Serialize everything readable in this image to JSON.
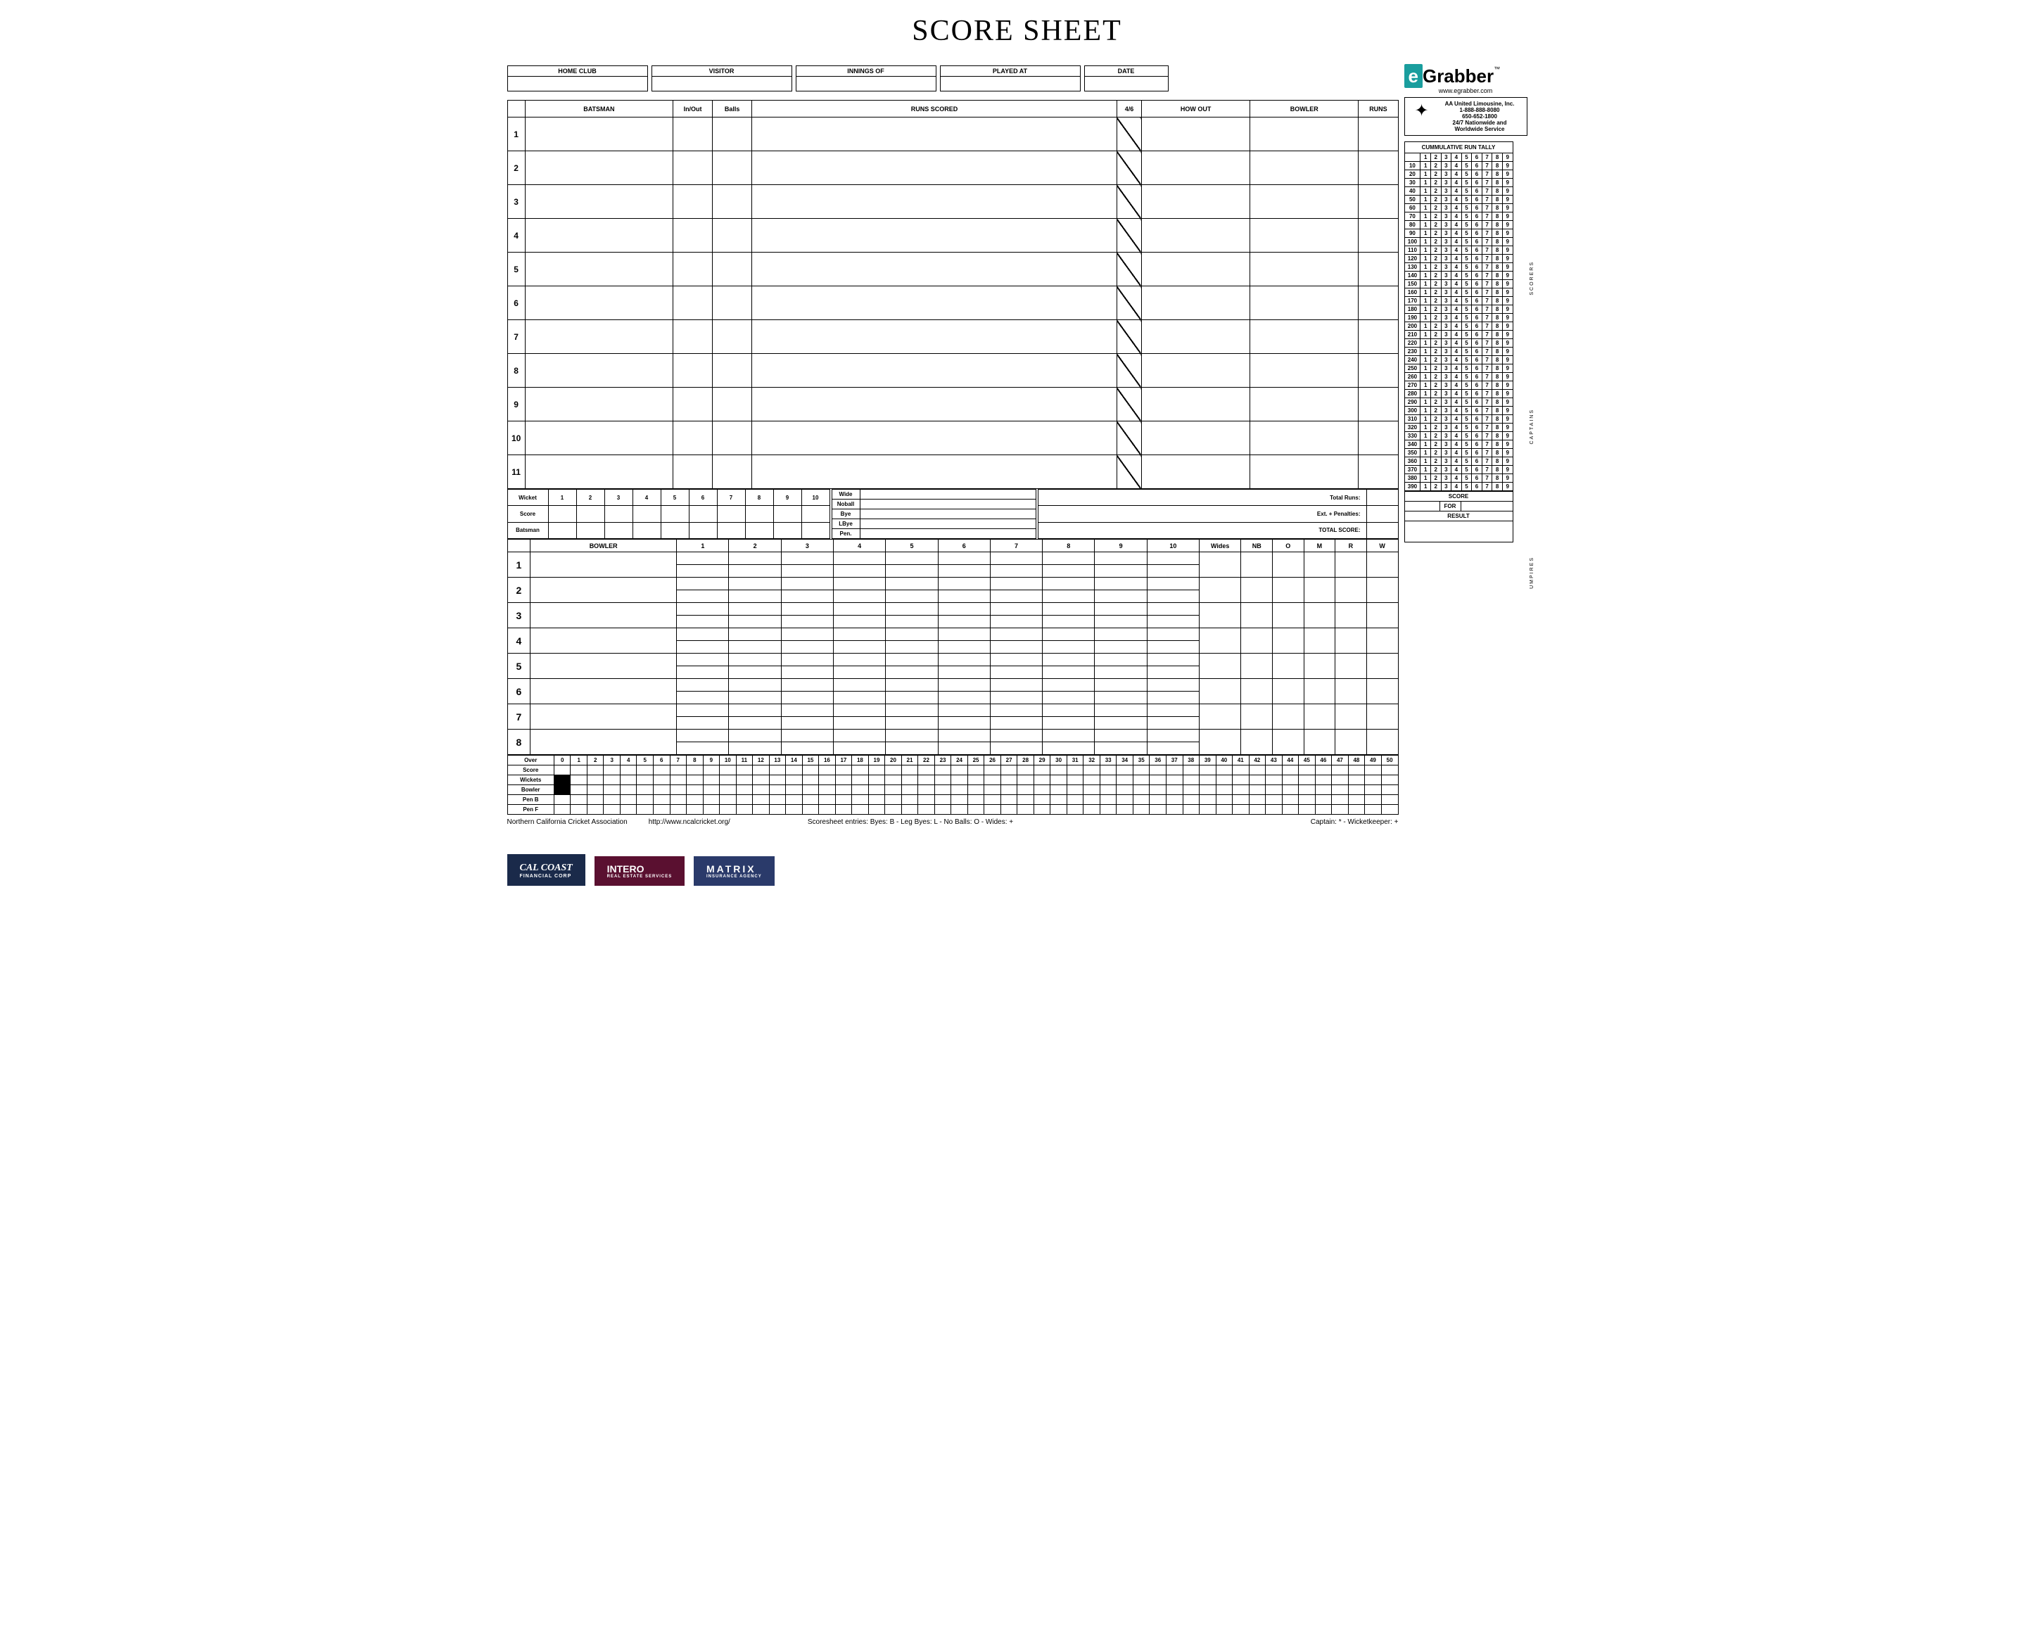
{
  "title": "SCORE SHEET",
  "headers": {
    "home": "HOME CLUB",
    "visitor": "VISITOR",
    "innings": "INNINGS OF",
    "played": "PLAYED AT",
    "date": "DATE"
  },
  "batting": {
    "cols": {
      "batsman": "BATSMAN",
      "inout": "In/Out",
      "balls": "Balls",
      "runs": "RUNS SCORED",
      "fs": "4/6",
      "how": "HOW OUT",
      "bowler": "BOWLER",
      "r": "RUNS"
    },
    "nums": [
      "1",
      "2",
      "3",
      "4",
      "5",
      "6",
      "7",
      "8",
      "9",
      "10",
      "11"
    ]
  },
  "wicket": {
    "label": "Wicket",
    "score": "Score",
    "batsman": "Batsman",
    "nums": [
      "1",
      "2",
      "3",
      "4",
      "5",
      "6",
      "7",
      "8",
      "9",
      "10"
    ]
  },
  "extras": {
    "wide": "Wide",
    "noball": "Noball",
    "bye": "Bye",
    "lbye": "LBye",
    "pen": "Pen."
  },
  "totals": {
    "tr": "Total Runs:",
    "ep": "Ext. + Penalties:",
    "ts": "TOTAL SCORE:"
  },
  "bowling": {
    "cols": {
      "bowler": "BOWLER",
      "wides": "Wides",
      "nb": "NB",
      "o": "O",
      "m": "M",
      "r": "R",
      "w": "W"
    },
    "overs": [
      "1",
      "2",
      "3",
      "4",
      "5",
      "6",
      "7",
      "8",
      "9",
      "10"
    ],
    "nums": [
      "1",
      "2",
      "3",
      "4",
      "5",
      "6",
      "7",
      "8"
    ]
  },
  "overTrack": {
    "rows": [
      "Over",
      "Score",
      "Wickets",
      "Bowler",
      "Pen B",
      "Pen F"
    ],
    "cols": [
      "0",
      "1",
      "2",
      "3",
      "4",
      "5",
      "6",
      "7",
      "8",
      "9",
      "10",
      "11",
      "12",
      "13",
      "14",
      "15",
      "16",
      "17",
      "18",
      "19",
      "20",
      "21",
      "22",
      "23",
      "24",
      "25",
      "26",
      "27",
      "28",
      "29",
      "30",
      "31",
      "32",
      "33",
      "34",
      "35",
      "36",
      "37",
      "38",
      "39",
      "40",
      "41",
      "42",
      "43",
      "44",
      "45",
      "46",
      "47",
      "48",
      "49",
      "50"
    ]
  },
  "tally": {
    "title": "CUMMULATIVE RUN TALLY",
    "units": [
      "1",
      "2",
      "3",
      "4",
      "5",
      "6",
      "7",
      "8",
      "9"
    ],
    "tens": [
      "10",
      "20",
      "30",
      "40",
      "50",
      "60",
      "70",
      "80",
      "90",
      "100",
      "110",
      "120",
      "130",
      "140",
      "150",
      "160",
      "170",
      "180",
      "190",
      "200",
      "210",
      "220",
      "230",
      "240",
      "250",
      "260",
      "270",
      "280",
      "290",
      "300",
      "310",
      "320",
      "330",
      "340",
      "350",
      "360",
      "370",
      "380",
      "390"
    ],
    "score": "SCORE",
    "for": "FOR",
    "result": "RESULT"
  },
  "sideLabels": {
    "scorers": "SCORERS",
    "captains": "CAPTAINS",
    "umpires": "UMPIRES"
  },
  "grabber": {
    "url": "www.egrabber.com"
  },
  "limo": {
    "name": "AA United Limousine, Inc.",
    "p1": "1-888-888-8080",
    "p2": "650-652-1800",
    "l1": "24/7 Nationwide and",
    "l2": "Worldwide Service"
  },
  "footer": {
    "org": "Northern California Cricket Association",
    "url": "http://www.ncalcricket.org/",
    "entries": "Scoresheet entries:  Byes: B      -  Leg Byes: L      -  No Balls: O  - Wides: +",
    "cap": "Captain: *  -  Wicketkeeper: +"
  },
  "sponsors": {
    "cc1": "CAL COAST",
    "cc2": "FINANCIAL CORP",
    "in1": "INTERO",
    "in2": "REAL ESTATE SERVICES",
    "mx1": "MATRIX",
    "mx2": "INSURANCE AGENCY"
  }
}
